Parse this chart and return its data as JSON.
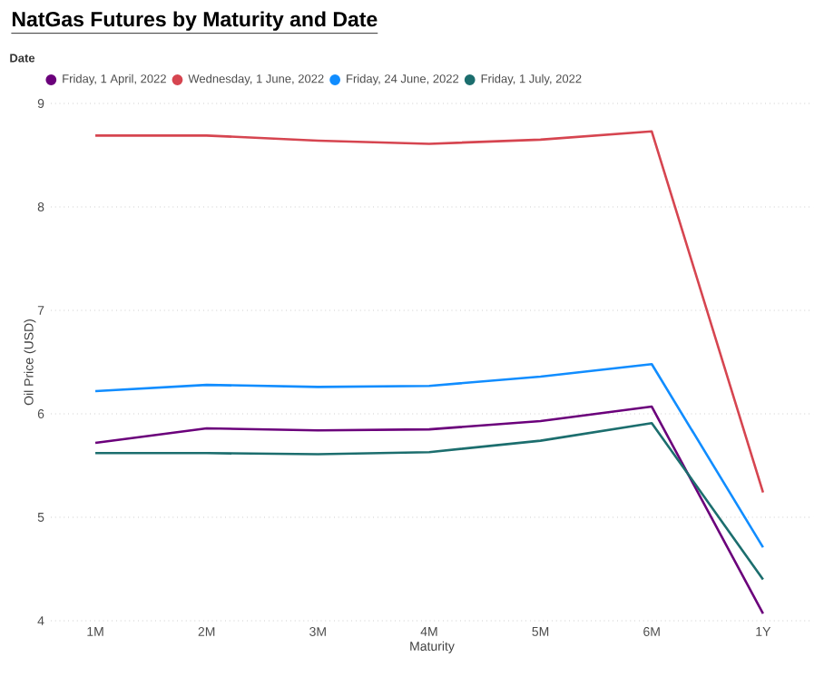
{
  "chart_data": {
    "type": "line",
    "title": "NatGas Futures by Maturity and Date",
    "xlabel": "Maturity",
    "ylabel": "Oil Price (USD)",
    "legend_title": "Date",
    "legend": "top left",
    "grid": "y",
    "line_style": "solid",
    "categories": [
      "1M",
      "2M",
      "3M",
      "4M",
      "5M",
      "6M",
      "1Y"
    ],
    "ylim": [
      4,
      9
    ],
    "yticks": [
      4,
      5,
      6,
      7,
      8,
      9
    ],
    "series": [
      {
        "name": "Friday, 1 April, 2022",
        "color": "#6b007b",
        "values": [
          5.72,
          5.86,
          5.84,
          5.85,
          5.93,
          6.07,
          4.07
        ]
      },
      {
        "name": "Wednesday, 1 June, 2022",
        "color": "#d64550",
        "values": [
          8.69,
          8.69,
          8.64,
          8.61,
          8.65,
          8.73,
          5.24
        ]
      },
      {
        "name": "Friday, 24 June, 2022",
        "color": "#118dff",
        "values": [
          6.22,
          6.28,
          6.26,
          6.27,
          6.36,
          6.48,
          4.71
        ]
      },
      {
        "name": "Friday, 1 July, 2022",
        "color": "#1c6e6e",
        "values": [
          5.62,
          5.62,
          5.61,
          5.63,
          5.74,
          5.91,
          4.4
        ]
      }
    ]
  }
}
